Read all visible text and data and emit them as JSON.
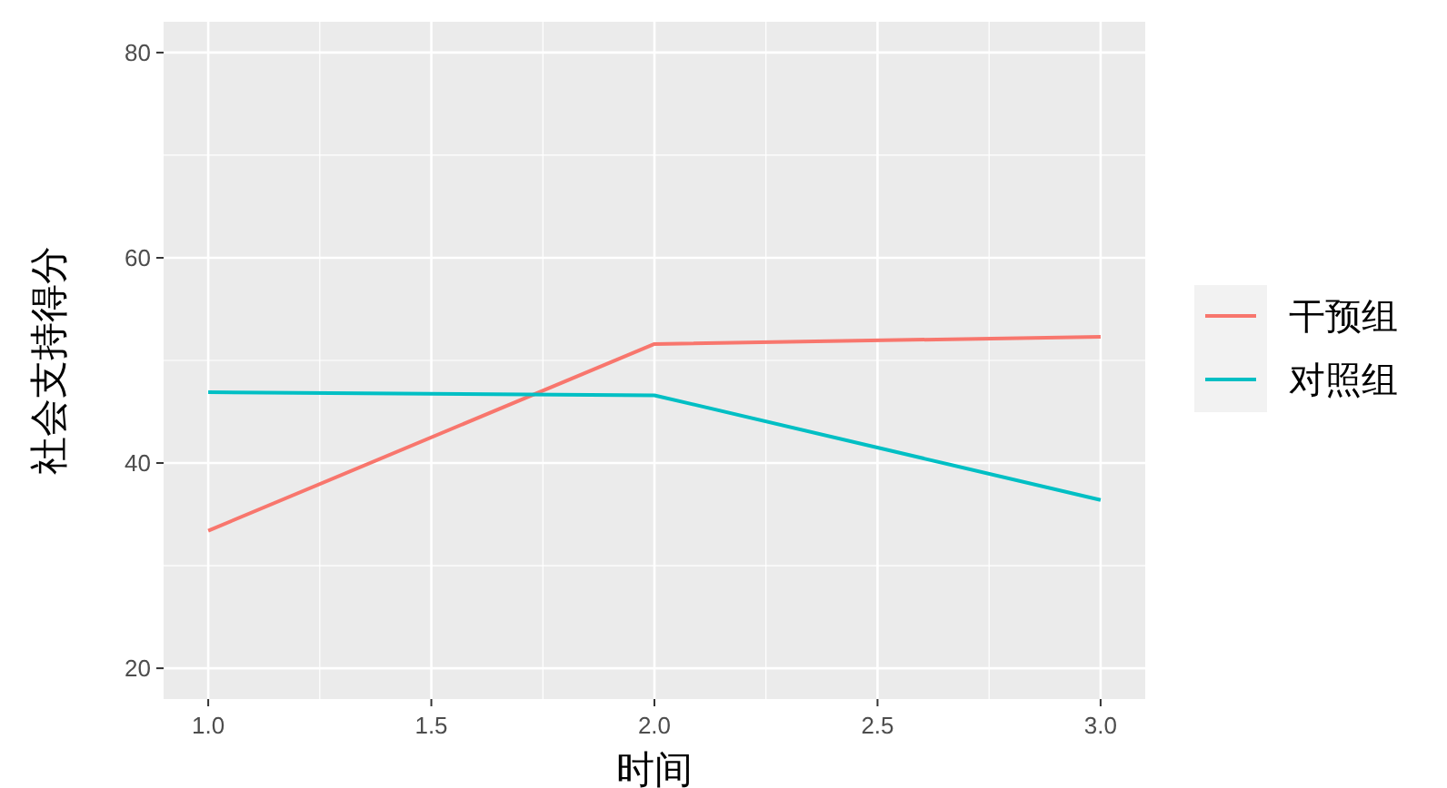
{
  "chart_data": {
    "type": "line",
    "xlabel": "时间",
    "ylabel": "社会支持得分",
    "x": [
      1,
      2,
      3
    ],
    "series": [
      {
        "name": "干预组",
        "color": "#f8766d",
        "values": [
          33.4,
          51.6,
          52.3
        ]
      },
      {
        "name": "对照组",
        "color": "#00bfc4",
        "values": [
          46.9,
          46.6,
          36.4
        ]
      }
    ],
    "xlim": [
      0.9,
      3.1
    ],
    "xticks": [
      {
        "value": 1,
        "label": "1.0"
      },
      {
        "value": 1.5,
        "label": "1.5"
      },
      {
        "value": 2,
        "label": "2.0"
      },
      {
        "value": 2.5,
        "label": "2.5"
      },
      {
        "value": 3,
        "label": "3.0"
      }
    ],
    "ylim": [
      17,
      83
    ],
    "yticks": [
      20,
      40,
      60,
      80
    ],
    "grid": true,
    "legend": "right",
    "line_style": "solid",
    "marker": "none"
  }
}
